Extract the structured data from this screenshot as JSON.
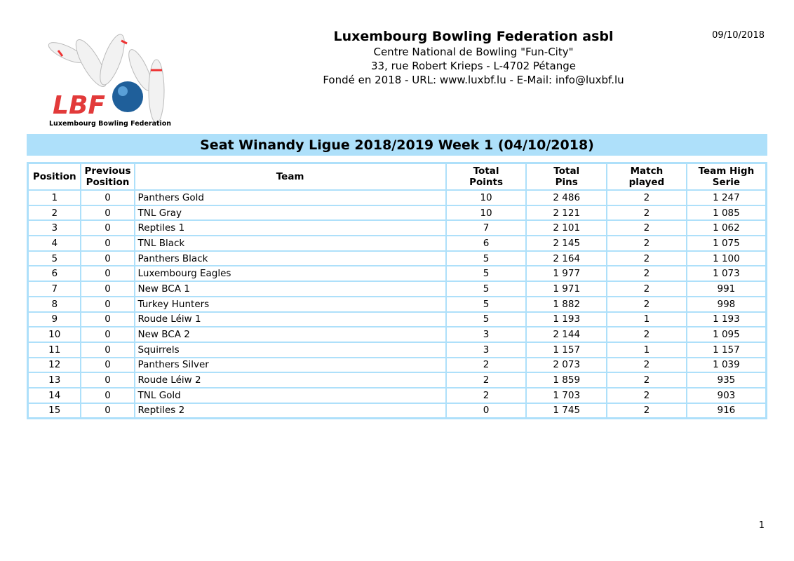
{
  "header": {
    "organization": "Luxembourg Bowling Federation asbl",
    "line1": "Centre National de Bowling \"Fun-City\"",
    "line2": "33, rue Robert Krieps - L-4702 Pétange",
    "line3": "Fondé en 2018 - URL: www.luxbf.lu - E-Mail: info@luxbf.lu",
    "date": "09/10/2018"
  },
  "logo": {
    "letters": "LBF",
    "caption": "Luxembourg Bowling Federation"
  },
  "title": "Seat Winandy Ligue 2018/2019 Week 1 (04/10/2018)",
  "columns": [
    [
      "Position"
    ],
    [
      "Previous",
      "Position"
    ],
    [
      "Team"
    ],
    [
      "Total",
      "Points"
    ],
    [
      "Total",
      "Pins"
    ],
    [
      "Match",
      "played"
    ],
    [
      "Team High",
      "Serie"
    ]
  ],
  "rows": [
    [
      "1",
      "0",
      "Panthers Gold",
      "10",
      "2 486",
      "2",
      "1 247"
    ],
    [
      "2",
      "0",
      "TNL Gray",
      "10",
      "2 121",
      "2",
      "1 085"
    ],
    [
      "3",
      "0",
      "Reptiles 1",
      "7",
      "2 101",
      "2",
      "1 062"
    ],
    [
      "4",
      "0",
      "TNL Black",
      "6",
      "2 145",
      "2",
      "1 075"
    ],
    [
      "5",
      "0",
      "Panthers Black",
      "5",
      "2 164",
      "2",
      "1 100"
    ],
    [
      "6",
      "0",
      "Luxembourg Eagles",
      "5",
      "1 977",
      "2",
      "1 073"
    ],
    [
      "7",
      "0",
      "New BCA 1",
      "5",
      "1 971",
      "2",
      "991"
    ],
    [
      "8",
      "0",
      "Turkey Hunters",
      "5",
      "1 882",
      "2",
      "998"
    ],
    [
      "9",
      "0",
      "Roude Léiw 1",
      "5",
      "1 193",
      "1",
      "1 193"
    ],
    [
      "10",
      "0",
      "New BCA 2",
      "3",
      "2 144",
      "2",
      "1 095"
    ],
    [
      "11",
      "0",
      "Squirrels",
      "3",
      "1 157",
      "1",
      "1 157"
    ],
    [
      "12",
      "0",
      "Panthers Silver",
      "2",
      "2 073",
      "2",
      "1 039"
    ],
    [
      "13",
      "0",
      "Roude Léiw 2",
      "2",
      "1 859",
      "2",
      "935"
    ],
    [
      "14",
      "0",
      "TNL Gold",
      "2",
      "1 703",
      "2",
      "903"
    ],
    [
      "15",
      "0",
      "Reptiles 2",
      "0",
      "1 745",
      "2",
      "916"
    ]
  ],
  "page_number": "1",
  "colors": {
    "accent": "#aee0fa"
  }
}
